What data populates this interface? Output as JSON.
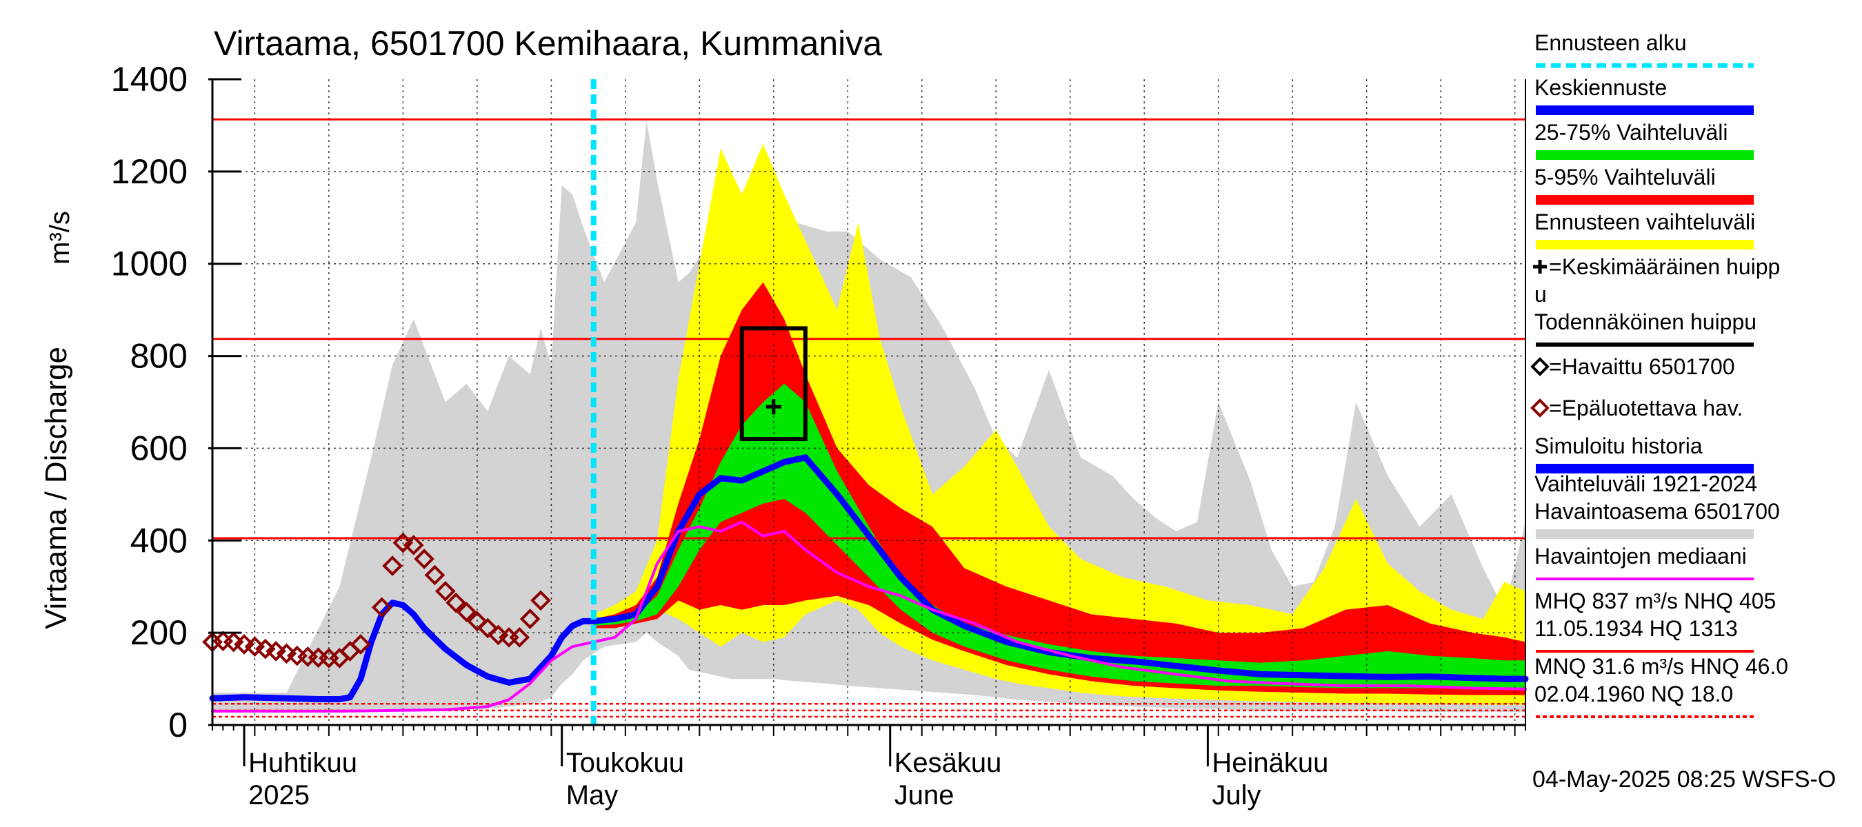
{
  "chart_data": {
    "type": "area",
    "title": "Virtaama, 6501700 Kemihaara, Kummaniva",
    "ylabel": "Virtaama / Discharge",
    "yunit": "m³/s",
    "ylim": [
      0,
      1400
    ],
    "yticks": [
      0,
      200,
      400,
      600,
      800,
      1000,
      1200,
      1400
    ],
    "xlim": [
      "2025-03-29",
      "2025-07-31"
    ],
    "grid": true,
    "legend_position": "right",
    "month_labels": [
      {
        "date": "2025-04-01",
        "line1": "Huhtikuu",
        "line2": "2025"
      },
      {
        "date": "2025-05-01",
        "line1": "Toukokuu",
        "line2": "May"
      },
      {
        "date": "2025-06-01",
        "line1": "Kesäkuu",
        "line2": "June"
      },
      {
        "date": "2025-07-01",
        "line1": "Heinäkuu",
        "line2": "July"
      }
    ],
    "forecast_start": "2025-05-04",
    "reference_lines": [
      {
        "label": "HQ",
        "value": 1313,
        "color": "#ff0000",
        "style": "solid"
      },
      {
        "label": "MHQ",
        "value": 837,
        "color": "#ff0000",
        "style": "solid"
      },
      {
        "label": "NHQ",
        "value": 405,
        "color": "#ff0000",
        "style": "solid"
      },
      {
        "label": "HNQ",
        "value": 46.0,
        "color": "#ff0000",
        "style": "dashed"
      },
      {
        "label": "MNQ",
        "value": 31.6,
        "color": "#ff0000",
        "style": "dashed"
      },
      {
        "label": "NQ",
        "value": 18.0,
        "color": "#ff0000",
        "style": "dashed"
      }
    ],
    "probable_peak_box": {
      "date_start": "2025-05-18",
      "date_end": "2025-05-24",
      "low": 620,
      "high": 860
    },
    "mean_peak": {
      "date": "2025-05-21",
      "value": 690
    },
    "series": [
      {
        "name": "Vaihteluväli 1921-2024 Havaintoasema 6501700",
        "color": "#d3d3d3",
        "kind": "band",
        "x": [
          "2025-03-29",
          "2025-04-05",
          "2025-04-10",
          "2025-04-13",
          "2025-04-15",
          "2025-04-17",
          "2025-04-20",
          "2025-04-22",
          "2025-04-24",
          "2025-04-26",
          "2025-04-28",
          "2025-04-29",
          "2025-04-30",
          "2025-05-01",
          "2025-05-02",
          "2025-05-03",
          "2025-05-05",
          "2025-05-08",
          "2025-05-09",
          "2025-05-10",
          "2025-05-12",
          "2025-05-13",
          "2025-05-15",
          "2025-05-17",
          "2025-05-19",
          "2025-05-21",
          "2025-05-23",
          "2025-05-26",
          "2025-05-28",
          "2025-05-31",
          "2025-06-03",
          "2025-06-06",
          "2025-06-09",
          "2025-06-11",
          "2025-06-13",
          "2025-06-16",
          "2025-06-19",
          "2025-06-22",
          "2025-06-24",
          "2025-06-26",
          "2025-06-28",
          "2025-06-30",
          "2025-07-02",
          "2025-07-05",
          "2025-07-07",
          "2025-07-09",
          "2025-07-11",
          "2025-07-13",
          "2025-07-15",
          "2025-07-18",
          "2025-07-21",
          "2025-07-24",
          "2025-07-27",
          "2025-07-29",
          "2025-07-31"
        ],
        "high": [
          70,
          70,
          300,
          580,
          780,
          880,
          700,
          740,
          680,
          800,
          760,
          860,
          780,
          1170,
          1150,
          1080,
          960,
          1090,
          1310,
          1180,
          960,
          980,
          1050,
          1140,
          1170,
          1170,
          1090,
          1070,
          1070,
          1010,
          970,
          860,
          730,
          620,
          580,
          770,
          580,
          540,
          490,
          450,
          420,
          440,
          700,
          530,
          380,
          300,
          310,
          430,
          700,
          540,
          430,
          500,
          340,
          250,
          440
        ],
        "low": [
          30,
          30,
          30,
          35,
          35,
          35,
          35,
          35,
          35,
          40,
          45,
          50,
          60,
          90,
          110,
          140,
          170,
          180,
          200,
          180,
          150,
          120,
          110,
          100,
          100,
          100,
          95,
          90,
          85,
          80,
          75,
          70,
          65,
          60,
          55,
          50,
          45,
          42,
          40,
          38,
          36,
          35,
          35,
          32,
          30,
          30,
          30,
          30,
          30,
          30,
          28,
          28,
          28,
          28,
          28
        ]
      },
      {
        "name": "Ennusteen vaihteluväli",
        "color": "#ffff00",
        "kind": "band",
        "x": [
          "2025-05-04",
          "2025-05-06",
          "2025-05-08",
          "2025-05-10",
          "2025-05-12",
          "2025-05-14",
          "2025-05-16",
          "2025-05-18",
          "2025-05-20",
          "2025-05-22",
          "2025-05-24",
          "2025-05-27",
          "2025-05-29",
          "2025-05-31",
          "2025-06-02",
          "2025-06-05",
          "2025-06-08",
          "2025-06-11",
          "2025-06-13",
          "2025-06-16",
          "2025-06-19",
          "2025-06-23",
          "2025-06-27",
          "2025-07-01",
          "2025-07-05",
          "2025-07-09",
          "2025-07-12",
          "2025-07-15",
          "2025-07-18",
          "2025-07-21",
          "2025-07-24",
          "2025-07-27",
          "2025-07-29",
          "2025-07-31"
        ],
        "high": [
          240,
          260,
          290,
          400,
          750,
          1000,
          1250,
          1150,
          1260,
          1150,
          1050,
          900,
          1090,
          840,
          690,
          500,
          560,
          640,
          560,
          430,
          360,
          320,
          300,
          270,
          260,
          240,
          340,
          490,
          350,
          290,
          250,
          230,
          310,
          290
        ],
        "low": [
          220,
          220,
          230,
          250,
          230,
          200,
          170,
          200,
          180,
          190,
          240,
          270,
          250,
          200,
          170,
          140,
          120,
          100,
          90,
          80,
          70,
          62,
          58,
          55,
          52,
          50,
          48,
          48,
          46,
          45,
          45,
          44,
          44,
          44
        ]
      },
      {
        "name": "5-95% Vaihteluväli",
        "color": "#ff0000",
        "kind": "band",
        "x": [
          "2025-05-04",
          "2025-05-06",
          "2025-05-08",
          "2025-05-10",
          "2025-05-12",
          "2025-05-14",
          "2025-05-16",
          "2025-05-18",
          "2025-05-20",
          "2025-05-22",
          "2025-05-24",
          "2025-05-27",
          "2025-05-30",
          "2025-06-02",
          "2025-06-05",
          "2025-06-08",
          "2025-06-12",
          "2025-06-16",
          "2025-06-20",
          "2025-06-24",
          "2025-06-28",
          "2025-07-02",
          "2025-07-06",
          "2025-07-10",
          "2025-07-14",
          "2025-07-18",
          "2025-07-22",
          "2025-07-26",
          "2025-07-29",
          "2025-07-31"
        ],
        "high": [
          230,
          240,
          260,
          320,
          480,
          620,
          800,
          900,
          960,
          880,
          760,
          600,
          520,
          470,
          430,
          340,
          300,
          270,
          240,
          230,
          220,
          200,
          200,
          210,
          250,
          260,
          220,
          200,
          190,
          180
        ],
        "low": [
          210,
          210,
          220,
          230,
          270,
          250,
          260,
          250,
          260,
          260,
          270,
          280,
          260,
          220,
          185,
          160,
          130,
          110,
          95,
          85,
          80,
          75,
          72,
          70,
          68,
          68,
          66,
          65,
          65,
          65
        ]
      },
      {
        "name": "25-75% Vaihteluväli",
        "color": "#00e600",
        "kind": "band",
        "x": [
          "2025-05-04",
          "2025-05-06",
          "2025-05-08",
          "2025-05-10",
          "2025-05-12",
          "2025-05-14",
          "2025-05-16",
          "2025-05-18",
          "2025-05-20",
          "2025-05-22",
          "2025-05-24",
          "2025-05-27",
          "2025-05-30",
          "2025-06-02",
          "2025-06-05",
          "2025-06-08",
          "2025-06-12",
          "2025-06-16",
          "2025-06-20",
          "2025-06-24",
          "2025-06-28",
          "2025-07-02",
          "2025-07-06",
          "2025-07-10",
          "2025-07-14",
          "2025-07-18",
          "2025-07-22",
          "2025-07-26",
          "2025-07-29",
          "2025-07-31"
        ],
        "high": [
          222,
          228,
          240,
          280,
          380,
          470,
          570,
          650,
          700,
          740,
          700,
          550,
          430,
          320,
          260,
          220,
          195,
          175,
          160,
          150,
          145,
          140,
          135,
          140,
          150,
          160,
          150,
          145,
          140,
          140
        ],
        "low": [
          215,
          218,
          225,
          240,
          300,
          380,
          440,
          460,
          480,
          490,
          460,
          390,
          320,
          250,
          200,
          170,
          140,
          120,
          105,
          95,
          90,
          85,
          85,
          82,
          80,
          80,
          80,
          78,
          78,
          78
        ]
      },
      {
        "name": "Simuloitu historia",
        "color": "#0000ff",
        "kind": "line",
        "x": [
          "2025-03-29",
          "2025-04-01",
          "2025-04-05",
          "2025-04-08",
          "2025-04-10",
          "2025-04-11",
          "2025-04-12",
          "2025-04-13",
          "2025-04-14",
          "2025-04-15",
          "2025-04-16",
          "2025-04-17",
          "2025-04-18",
          "2025-04-20",
          "2025-04-22",
          "2025-04-24",
          "2025-04-26",
          "2025-04-28",
          "2025-04-30",
          "2025-05-01",
          "2025-05-02",
          "2025-05-03",
          "2025-05-04"
        ],
        "values": [
          58,
          60,
          58,
          56,
          56,
          60,
          100,
          180,
          240,
          265,
          260,
          240,
          210,
          165,
          130,
          105,
          92,
          100,
          150,
          190,
          215,
          225,
          225
        ]
      },
      {
        "name": "Keskiennuste",
        "color": "#0000ff",
        "kind": "line",
        "x": [
          "2025-05-04",
          "2025-05-06",
          "2025-05-08",
          "2025-05-10",
          "2025-05-12",
          "2025-05-14",
          "2025-05-16",
          "2025-05-18",
          "2025-05-20",
          "2025-05-22",
          "2025-05-24",
          "2025-05-27",
          "2025-05-30",
          "2025-06-02",
          "2025-06-05",
          "2025-06-08",
          "2025-06-12",
          "2025-06-16",
          "2025-06-20",
          "2025-06-24",
          "2025-06-28",
          "2025-07-02",
          "2025-07-06",
          "2025-07-10",
          "2025-07-14",
          "2025-07-18",
          "2025-07-22",
          "2025-07-26",
          "2025-07-29",
          "2025-07-31"
        ],
        "values": [
          225,
          230,
          240,
          300,
          420,
          500,
          535,
          530,
          550,
          570,
          580,
          500,
          410,
          320,
          250,
          215,
          180,
          158,
          145,
          138,
          128,
          118,
          110,
          108,
          106,
          104,
          105,
          102,
          100,
          100
        ]
      },
      {
        "name": "Havaintojen mediaani",
        "color": "#ff00ff",
        "kind": "line",
        "x": [
          "2025-03-29",
          "2025-04-10",
          "2025-04-20",
          "2025-04-24",
          "2025-04-26",
          "2025-04-28",
          "2025-04-30",
          "2025-05-02",
          "2025-05-04",
          "2025-05-06",
          "2025-05-08",
          "2025-05-10",
          "2025-05-12",
          "2025-05-14",
          "2025-05-16",
          "2025-05-18",
          "2025-05-20",
          "2025-05-22",
          "2025-05-24",
          "2025-05-27",
          "2025-05-30",
          "2025-06-02",
          "2025-06-05",
          "2025-06-09",
          "2025-06-13",
          "2025-06-18",
          "2025-06-23",
          "2025-06-28",
          "2025-07-03",
          "2025-07-08",
          "2025-07-14",
          "2025-07-20",
          "2025-07-26",
          "2025-07-31"
        ],
        "values": [
          30,
          30,
          33,
          40,
          55,
          90,
          140,
          170,
          180,
          190,
          230,
          350,
          420,
          430,
          420,
          440,
          410,
          420,
          380,
          330,
          300,
          280,
          250,
          220,
          180,
          150,
          125,
          110,
          95,
          90,
          85,
          85,
          80,
          78
        ]
      },
      {
        "name": "Epäluotettava hav.",
        "color": "#8b0000",
        "kind": "markers",
        "x": [
          "2025-03-29",
          "2025-03-30",
          "2025-03-31",
          "2025-04-01",
          "2025-04-02",
          "2025-04-03",
          "2025-04-04",
          "2025-04-05",
          "2025-04-06",
          "2025-04-07",
          "2025-04-08",
          "2025-04-09",
          "2025-04-10",
          "2025-04-11",
          "2025-04-12",
          "2025-04-14",
          "2025-04-15",
          "2025-04-16",
          "2025-04-17",
          "2025-04-18",
          "2025-04-19",
          "2025-04-20",
          "2025-04-21",
          "2025-04-22",
          "2025-04-23",
          "2025-04-24",
          "2025-04-25",
          "2025-04-26",
          "2025-04-27",
          "2025-04-28",
          "2025-04-29"
        ],
        "values": [
          180,
          182,
          180,
          175,
          170,
          165,
          160,
          155,
          150,
          148,
          146,
          145,
          145,
          160,
          175,
          255,
          345,
          395,
          390,
          360,
          325,
          290,
          265,
          245,
          225,
          210,
          195,
          190,
          190,
          230,
          270
        ]
      }
    ]
  },
  "legend": {
    "items": [
      {
        "label": "Ennusteen alku",
        "swatch": "dashed",
        "color": "#00e5ff"
      },
      {
        "label": "Keskiennuste",
        "swatch": "bar",
        "color": "#0000ff"
      },
      {
        "label": "25-75% Vaihteluväli",
        "swatch": "bar",
        "color": "#00e600"
      },
      {
        "label": "5-95% Vaihteluväli",
        "swatch": "bar",
        "color": "#ff0000"
      },
      {
        "label": "Ennusteen vaihteluväli",
        "swatch": "bar",
        "color": "#ffff00"
      },
      {
        "label": "=Keskimääräinen huipp",
        "label2": "u",
        "swatch": "plus",
        "color": "#000000"
      },
      {
        "label": "Todennäköinen huippu",
        "swatch": "line",
        "color": "#000000"
      },
      {
        "label": "=Havaittu 6501700",
        "swatch": "diamond",
        "color": "#000000"
      },
      {
        "label": "=Epäluotettava hav.",
        "swatch": "diamond",
        "color": "#8b0000"
      },
      {
        "label": "Simuloitu historia",
        "swatch": "bar",
        "color": "#0000ff"
      },
      {
        "label": "Vaihteluväli 1921-2024",
        "label2": " Havaintoasema 6501700",
        "swatch": "bar",
        "color": "#d3d3d3"
      },
      {
        "label": "Havaintojen mediaani",
        "swatch": "line",
        "color": "#ff00ff"
      },
      {
        "label": "MHQ  837 m³/s NHQ  405",
        "label2": "11.05.1934 HQ 1313",
        "swatch": "line",
        "color": "#ff0000"
      },
      {
        "label": "MNQ 31.6 m³/s HNQ 46.0",
        "label2": "02.04.1960 NQ 18.0",
        "swatch": "dashed",
        "color": "#ff0000"
      }
    ]
  },
  "footer": {
    "timestamp": "04-May-2025 08:25 WSFS-O"
  },
  "colors": {
    "grid": "#000000",
    "background": "#ffffff"
  }
}
